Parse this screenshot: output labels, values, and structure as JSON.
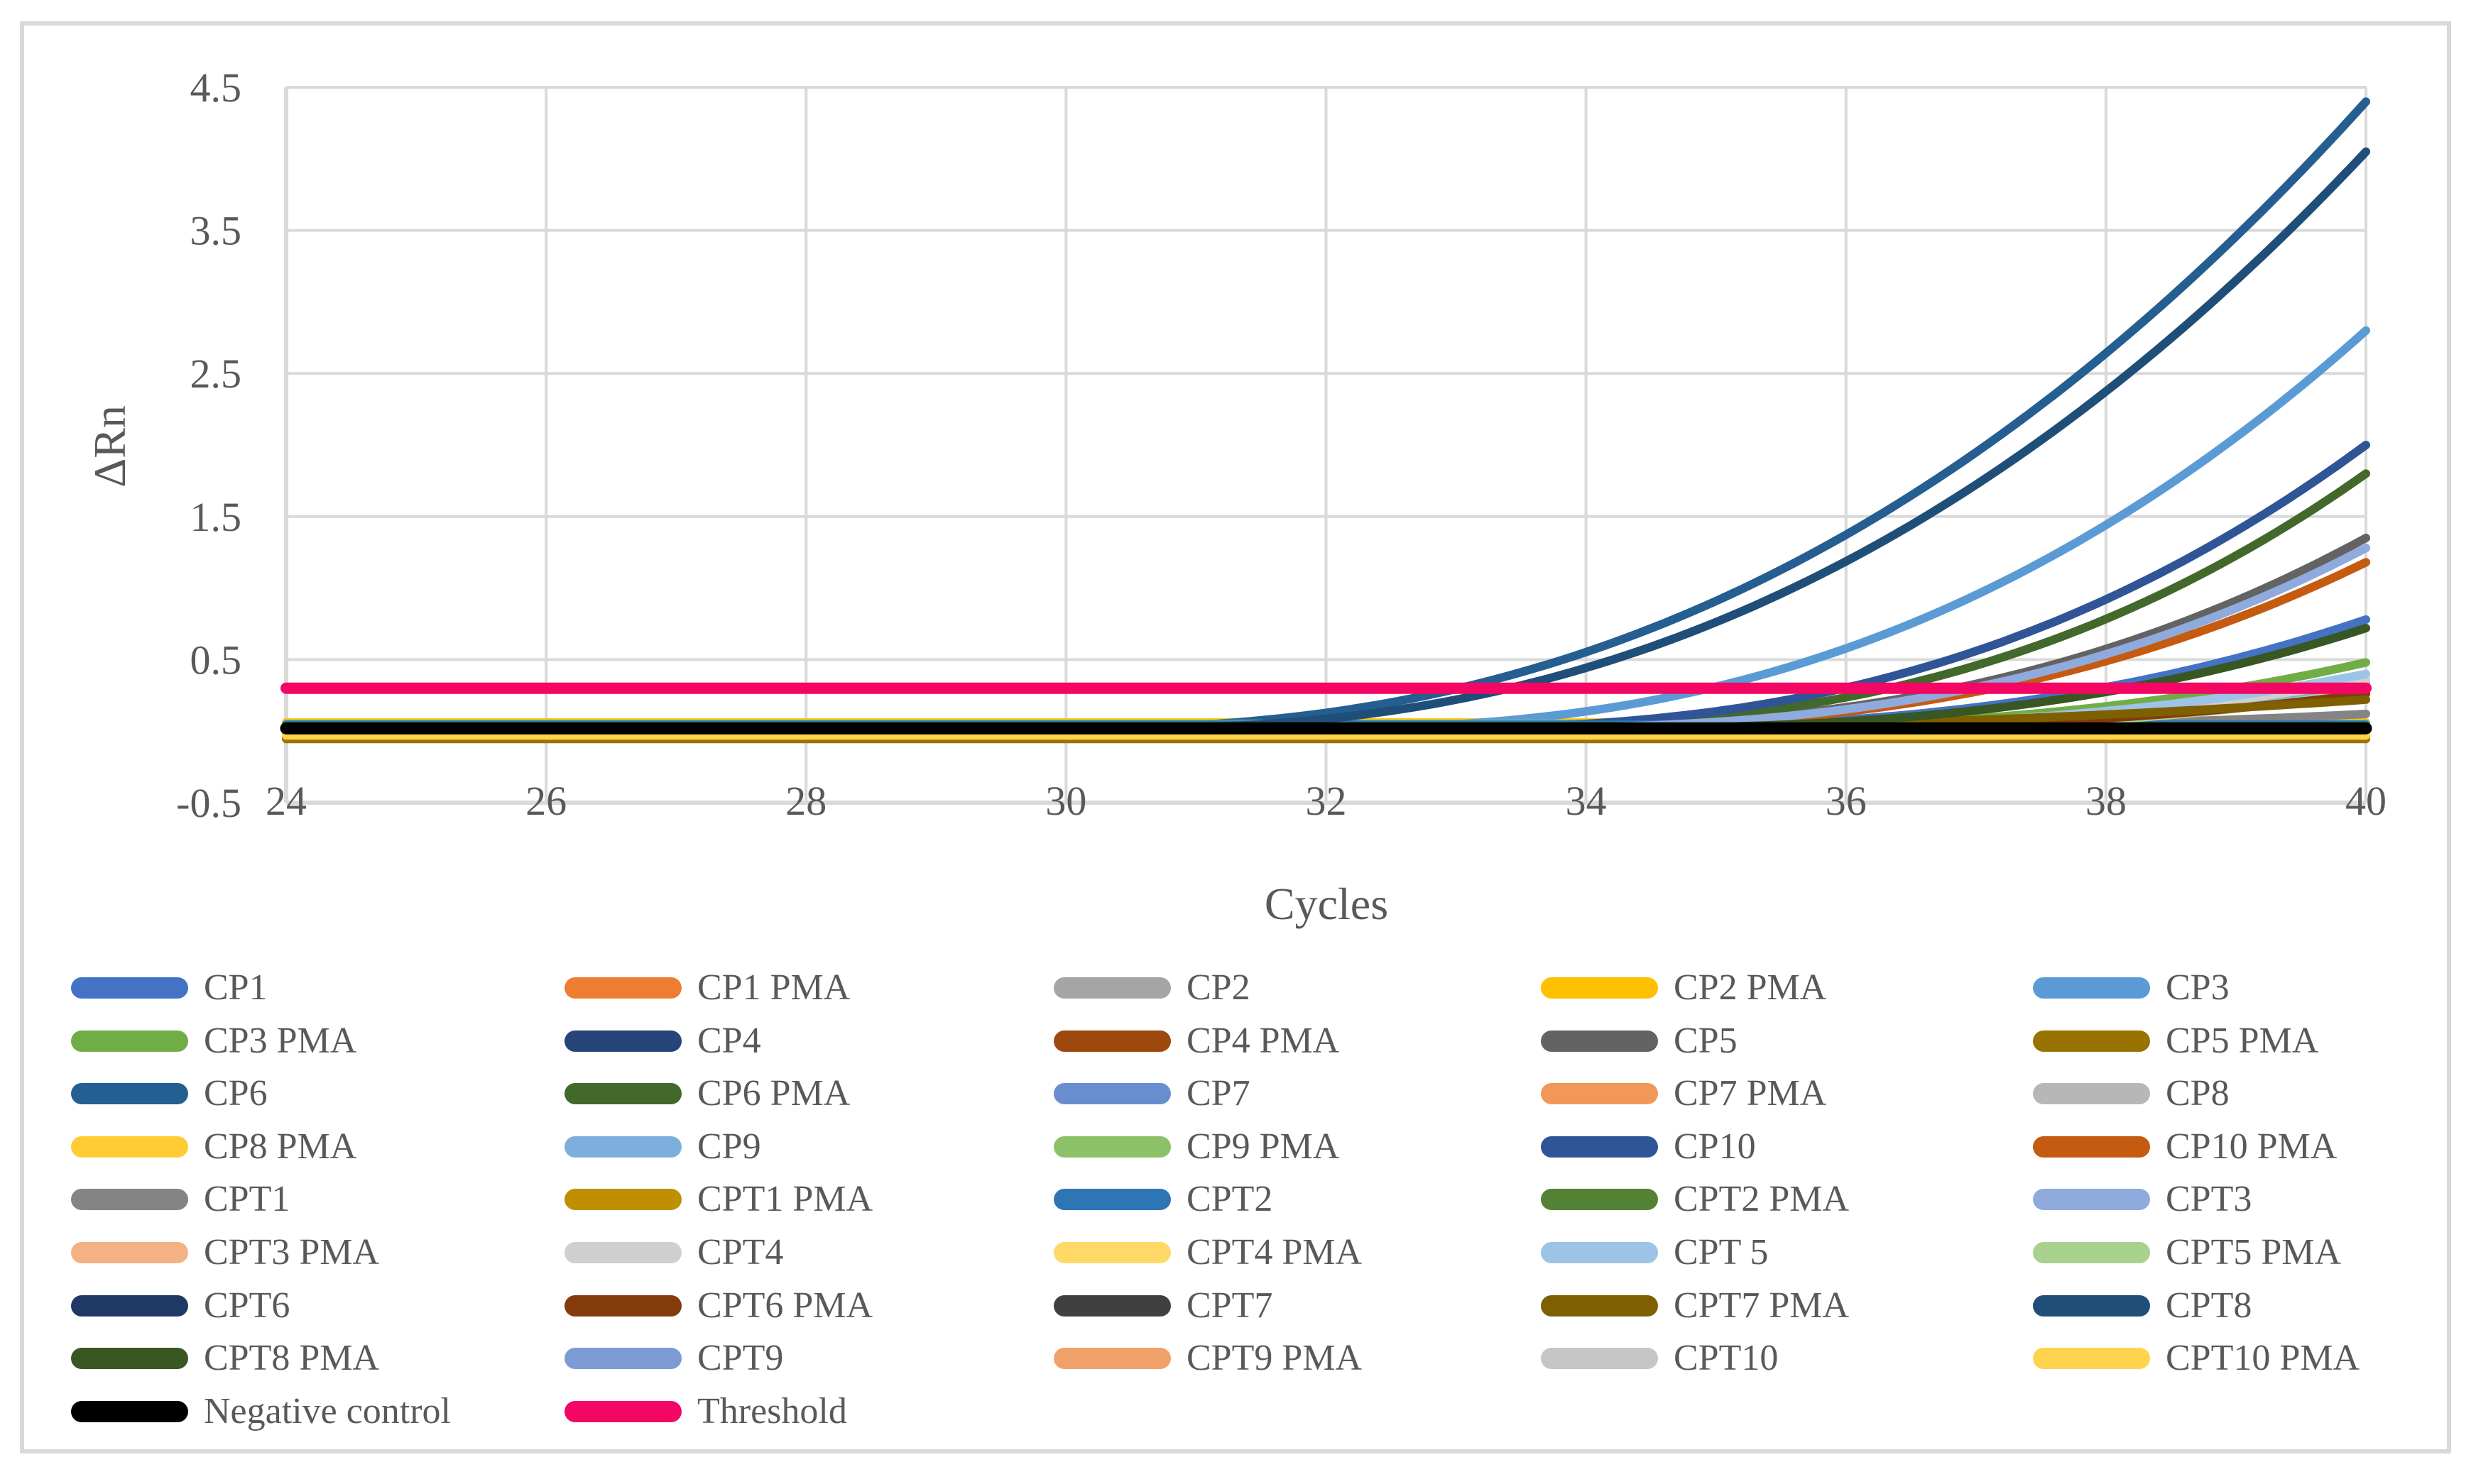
{
  "figure": {
    "background": "#FFFFFF",
    "frame_border_color": "#D9D9D9",
    "grid_color": "#D9D9D9",
    "text_color": "#595959"
  },
  "axes": {
    "x": {
      "title": "Cycles",
      "min": 24,
      "max": 40,
      "ticks": [
        24,
        26,
        28,
        30,
        32,
        34,
        36,
        38,
        40
      ]
    },
    "y": {
      "title": "ΔRn",
      "min": -0.5,
      "max": 4.5,
      "ticks": [
        4.5,
        3.5,
        2.5,
        1.5,
        0.5,
        -0.5
      ]
    }
  },
  "chart_data": {
    "type": "line",
    "title": "",
    "xlabel": "Cycles",
    "ylabel": "ΔRn",
    "xlim": [
      24,
      40
    ],
    "ylim": [
      -0.5,
      4.5
    ],
    "grid": true,
    "legend_position": "bottom",
    "baseline_value": 0.02,
    "threshold_value": 0.3,
    "series_note": "end = ΔRn at cycle 40; onset = cycle where amplification curve lifts off baseline (null = flat line); p = curve shape exponent",
    "series": [
      {
        "name": "CP1",
        "color": "#4472C4",
        "end": 0.78,
        "onset": 33.6,
        "p": 2.6,
        "width": 12
      },
      {
        "name": "CP1 PMA",
        "color": "#ED7D31",
        "end": -0.04,
        "onset": null,
        "p": null,
        "width": 12
      },
      {
        "name": "CP2",
        "color": "#A5A5A5",
        "end": 0.34,
        "onset": 34.8,
        "p": 2.6,
        "width": 12
      },
      {
        "name": "CP2 PMA",
        "color": "#FFC000",
        "end": 0.06,
        "onset": null,
        "p": null,
        "width": 12
      },
      {
        "name": "CP3",
        "color": "#5B9BD5",
        "end": 2.8,
        "onset": 31.8,
        "p": 2.4,
        "width": 12
      },
      {
        "name": "CP3 PMA",
        "color": "#70AD47",
        "end": 0.48,
        "onset": 34.2,
        "p": 2.6,
        "width": 12
      },
      {
        "name": "CP4",
        "color": "#264478",
        "end": 0.03,
        "onset": null,
        "p": null,
        "width": 12
      },
      {
        "name": "CP4 PMA",
        "color": "#9E480E",
        "end": 0.0,
        "onset": null,
        "p": null,
        "width": 12
      },
      {
        "name": "CP5",
        "color": "#636363",
        "end": 1.35,
        "onset": 33.0,
        "p": 2.6,
        "width": 12
      },
      {
        "name": "CP5 PMA",
        "color": "#997300",
        "end": -0.055,
        "onset": null,
        "p": null,
        "width": 12
      },
      {
        "name": "CP6",
        "color": "#255E91",
        "end": 4.4,
        "onset": 30.0,
        "p": 2.3,
        "width": 12
      },
      {
        "name": "CP6 PMA",
        "color": "#43682B",
        "end": 1.8,
        "onset": 32.8,
        "p": 2.6,
        "width": 12
      },
      {
        "name": "CP7",
        "color": "#698ED0",
        "end": 0.025,
        "onset": null,
        "p": null,
        "width": 12
      },
      {
        "name": "CP7 PMA",
        "color": "#F1975A",
        "end": -0.01,
        "onset": null,
        "p": null,
        "width": 12
      },
      {
        "name": "CP8",
        "color": "#B7B7B7",
        "end": 0.01,
        "onset": null,
        "p": null,
        "width": 12
      },
      {
        "name": "CP8 PMA",
        "color": "#FFCD33",
        "end": 0.04,
        "onset": null,
        "p": null,
        "width": 12
      },
      {
        "name": "CP9",
        "color": "#7CAFDD",
        "end": 0.33,
        "onset": 35.0,
        "p": 2.6,
        "width": 12
      },
      {
        "name": "CP9 PMA",
        "color": "#8CC168",
        "end": 0.05,
        "onset": null,
        "p": null,
        "width": 12
      },
      {
        "name": "CP10",
        "color": "#2F5597",
        "end": 2.0,
        "onset": 32.6,
        "p": 2.5,
        "width": 12
      },
      {
        "name": "CP10 PMA",
        "color": "#C55A11",
        "end": 1.18,
        "onset": 33.2,
        "p": 2.6,
        "width": 12
      },
      {
        "name": "CPT1",
        "color": "#848484",
        "end": 0.12,
        "onset": 35.0,
        "p": 2.2,
        "width": 12
      },
      {
        "name": "CPT1 PMA",
        "color": "#BF8F00",
        "end": 0.02,
        "onset": null,
        "p": null,
        "width": 12
      },
      {
        "name": "CPT2",
        "color": "#2E75B6",
        "end": 0.045,
        "onset": null,
        "p": null,
        "width": 12
      },
      {
        "name": "CPT2 PMA",
        "color": "#548235",
        "end": 0.035,
        "onset": null,
        "p": null,
        "width": 12
      },
      {
        "name": "CPT3",
        "color": "#8FAADC",
        "end": 1.28,
        "onset": 33.1,
        "p": 2.6,
        "width": 12
      },
      {
        "name": "CPT3 PMA",
        "color": "#F4B183",
        "end": -0.005,
        "onset": null,
        "p": null,
        "width": 12
      },
      {
        "name": "CPT4",
        "color": "#CFCFCF",
        "end": 0.36,
        "onset": 34.6,
        "p": 2.6,
        "width": 12
      },
      {
        "name": "CPT4 PMA",
        "color": "#FFD966",
        "end": -0.02,
        "onset": null,
        "p": null,
        "width": 12
      },
      {
        "name": "CPT 5",
        "color": "#9DC3E6",
        "end": 0.4,
        "onset": 34.4,
        "p": 2.6,
        "width": 12
      },
      {
        "name": "CPT5 PMA",
        "color": "#A9D18E",
        "end": 0.28,
        "onset": 35.4,
        "p": 2.6,
        "width": 12
      },
      {
        "name": "CPT6",
        "color": "#1F3864",
        "end": 0.02,
        "onset": null,
        "p": null,
        "width": 12
      },
      {
        "name": "CPT6 PMA",
        "color": "#843C0C",
        "end": 0.26,
        "onset": 35.0,
        "p": 2.4,
        "width": 12
      },
      {
        "name": "CPT7",
        "color": "#404040",
        "end": 0.015,
        "onset": null,
        "p": null,
        "width": 12
      },
      {
        "name": "CPT7 PMA",
        "color": "#7F6000",
        "end": 0.22,
        "onset": 33.5,
        "p": 2.0,
        "width": 12
      },
      {
        "name": "CPT8",
        "color": "#1F4E79",
        "end": 4.05,
        "onset": 30.4,
        "p": 2.3,
        "width": 12
      },
      {
        "name": "CPT8 PMA",
        "color": "#385723",
        "end": 0.72,
        "onset": 33.8,
        "p": 2.6,
        "width": 12
      },
      {
        "name": "CPT9",
        "color": "#7C9BD5",
        "end": 0.03,
        "onset": null,
        "p": null,
        "width": 12
      },
      {
        "name": "CPT9 PMA",
        "color": "#F0A169",
        "end": -0.015,
        "onset": null,
        "p": null,
        "width": 12
      },
      {
        "name": "CPT10",
        "color": "#C6C6C6",
        "end": 0.005,
        "onset": null,
        "p": null,
        "width": 12
      },
      {
        "name": "CPT10 PMA",
        "color": "#FFD34D",
        "end": -0.03,
        "onset": null,
        "p": null,
        "width": 12
      },
      {
        "name": "Negative control",
        "color": "#000000",
        "end": 0.02,
        "onset": null,
        "p": null,
        "width": 17
      },
      {
        "name": "Threshold",
        "color": "#F30664",
        "end": 0.3,
        "onset": null,
        "p": null,
        "width": 16
      }
    ]
  },
  "legend": {
    "columns": 5,
    "entries_follow_series_order": true
  }
}
